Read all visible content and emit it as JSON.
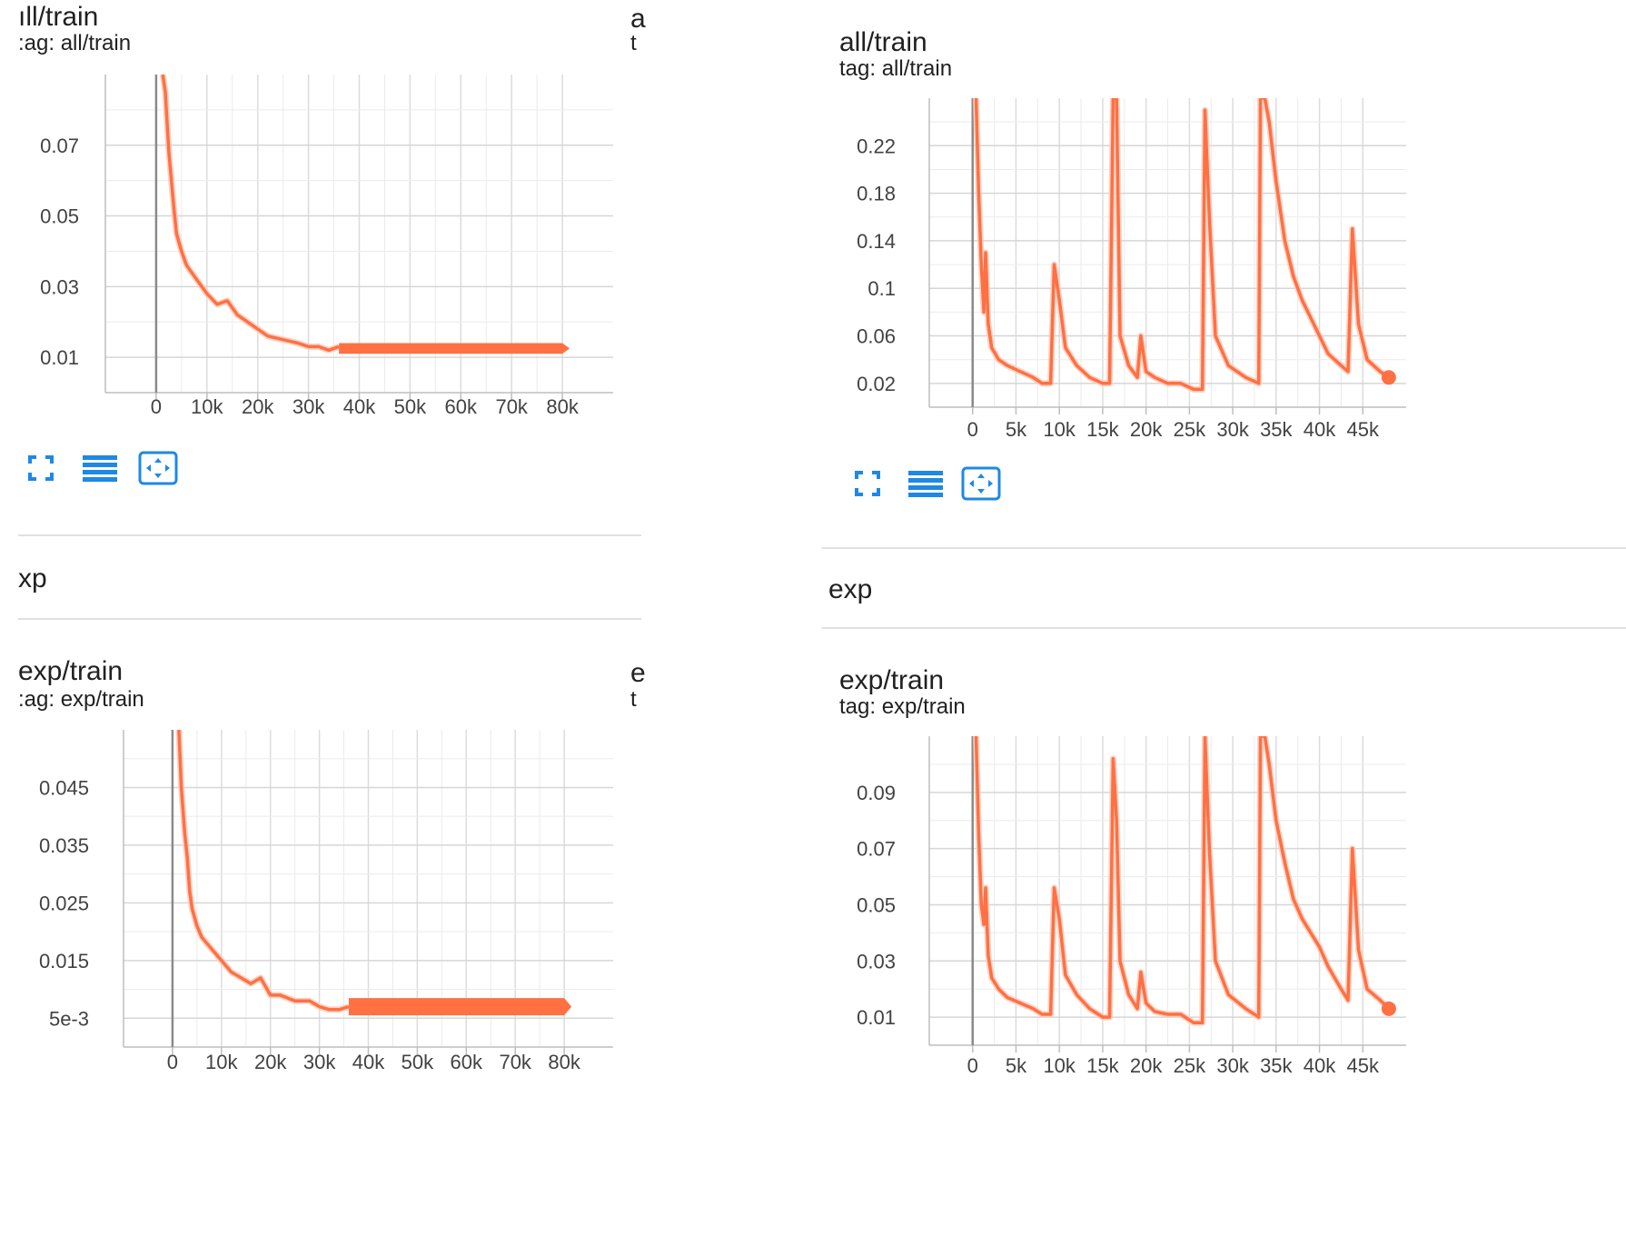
{
  "accent_color": "#ff7043",
  "accent_color_faint": "#f9c9b8",
  "tool_color": "#1e88e5",
  "sections": {
    "left_exp": "xp",
    "right_exp": "exp"
  },
  "toolbar_icons": [
    "fullscreen-icon",
    "list-icon",
    "fit-domain-icon"
  ],
  "cards": [
    {
      "id": "left-all",
      "title": "all/train",
      "tag": "tag: all/train",
      "title_shown": "ıll/train",
      "tag_shown": ":ag: all/train",
      "cut_title": "a",
      "cut_tag": "t"
    },
    {
      "id": "right-all",
      "title": "all/train",
      "tag": "tag: all/train"
    },
    {
      "id": "left-exp",
      "title": "exp/train",
      "tag": "tag: exp/train",
      "title_shown": "exp/train",
      "tag_shown": ":ag: exp/train",
      "cut_title": "e",
      "cut_tag": "t"
    },
    {
      "id": "right-exp",
      "title": "exp/train",
      "tag": "tag: exp/train"
    }
  ],
  "chart_data": [
    {
      "id": "left-all",
      "type": "line",
      "title": "all/train",
      "xlim": [
        -10000,
        90000
      ],
      "ylim": [
        0.0,
        0.09
      ],
      "xticks": [
        0,
        10000,
        20000,
        30000,
        40000,
        50000,
        60000,
        70000,
        80000
      ],
      "xtick_labels": [
        "0",
        "10k",
        "20k",
        "30k",
        "40k",
        "50k",
        "60k",
        "70k",
        "80k"
      ],
      "yticks": [
        0.01,
        0.03,
        0.05,
        0.07
      ],
      "ytick_labels": [
        "0.01",
        "0.03",
        "0.05",
        "0.07"
      ],
      "grid": true,
      "series": [
        {
          "x": [
            1300,
            1800,
            2500,
            3000,
            3500,
            4000,
            5000,
            6000,
            8000,
            10000,
            12000,
            14000,
            16000,
            18000,
            20000,
            22000,
            25000,
            28000,
            30000,
            32000,
            34000,
            36000
          ],
          "y": [
            0.09,
            0.085,
            0.068,
            0.06,
            0.052,
            0.045,
            0.04,
            0.036,
            0.032,
            0.028,
            0.025,
            0.026,
            0.022,
            0.02,
            0.018,
            0.016,
            0.015,
            0.014,
            0.013,
            0.013,
            0.012,
            0.013
          ]
        }
      ],
      "band": {
        "x": [
          36000,
          80000
        ],
        "y": [
          0.011,
          0.014
        ]
      }
    },
    {
      "id": "right-all",
      "type": "line",
      "title": "all/train",
      "xlim": [
        -5000,
        50000
      ],
      "ylim": [
        0.0,
        0.26
      ],
      "xticks": [
        0,
        5000,
        10000,
        15000,
        20000,
        25000,
        30000,
        35000,
        40000,
        45000
      ],
      "xtick_labels": [
        "0",
        "5k",
        "10k",
        "15k",
        "20k",
        "25k",
        "30k",
        "35k",
        "40k",
        "45k"
      ],
      "yticks": [
        0.02,
        0.06,
        0.1,
        0.14,
        0.18,
        0.22
      ],
      "ytick_labels": [
        "0.02",
        "0.06",
        "0.1",
        "0.14",
        "0.18",
        "0.22"
      ],
      "grid": true,
      "series": [
        {
          "x": [
            400,
            700,
            1000,
            1300,
            1500,
            1800,
            2200,
            3000,
            4000,
            5500,
            7000,
            8000,
            8700,
            9000,
            9400,
            10000,
            10700,
            12000,
            13500,
            15000,
            15800,
            16200,
            16600,
            17000,
            18000,
            19000,
            19400,
            20000,
            21000,
            22500,
            24000,
            25500,
            26500,
            26800,
            27300,
            28000,
            29500,
            31500,
            33000,
            33200,
            33700,
            34200,
            35000,
            36000,
            37000,
            38000,
            39000,
            40000,
            41000,
            42500,
            43300,
            43800,
            44500,
            45500,
            47000,
            48000
          ],
          "y": [
            0.26,
            0.18,
            0.12,
            0.08,
            0.13,
            0.07,
            0.05,
            0.04,
            0.035,
            0.03,
            0.025,
            0.02,
            0.02,
            0.02,
            0.12,
            0.09,
            0.05,
            0.035,
            0.025,
            0.02,
            0.02,
            0.26,
            0.26,
            0.06,
            0.035,
            0.025,
            0.06,
            0.03,
            0.025,
            0.02,
            0.02,
            0.015,
            0.015,
            0.25,
            0.16,
            0.06,
            0.035,
            0.025,
            0.02,
            0.26,
            0.26,
            0.24,
            0.19,
            0.14,
            0.11,
            0.09,
            0.075,
            0.06,
            0.045,
            0.035,
            0.03,
            0.15,
            0.07,
            0.04,
            0.03,
            0.025
          ]
        }
      ]
    },
    {
      "id": "left-exp",
      "type": "line",
      "title": "exp/train",
      "xlim": [
        -10000,
        90000
      ],
      "ylim": [
        0.0,
        0.055
      ],
      "xticks": [
        0,
        10000,
        20000,
        30000,
        40000,
        50000,
        60000,
        70000,
        80000
      ],
      "xtick_labels": [
        "0",
        "10k",
        "20k",
        "30k",
        "40k",
        "50k",
        "60k",
        "70k",
        "80k"
      ],
      "yticks": [
        0.005,
        0.015,
        0.025,
        0.035,
        0.045
      ],
      "ytick_labels": [
        "5e-3",
        "0.015",
        "0.025",
        "0.035",
        "0.045"
      ],
      "grid": true,
      "series": [
        {
          "x": [
            1300,
            1800,
            2500,
            3000,
            3500,
            4000,
            5000,
            6000,
            8000,
            10000,
            12000,
            14000,
            16000,
            18000,
            20000,
            22000,
            25000,
            28000,
            30000,
            32000,
            34000,
            36000
          ],
          "y": [
            0.055,
            0.045,
            0.037,
            0.033,
            0.027,
            0.024,
            0.021,
            0.019,
            0.017,
            0.015,
            0.013,
            0.012,
            0.011,
            0.012,
            0.009,
            0.009,
            0.008,
            0.008,
            0.007,
            0.0065,
            0.0065,
            0.007
          ]
        }
      ],
      "band": {
        "x": [
          36000,
          80000
        ],
        "y": [
          0.0055,
          0.0085
        ]
      }
    },
    {
      "id": "right-exp",
      "type": "line",
      "title": "exp/train",
      "xlim": [
        -5000,
        50000
      ],
      "ylim": [
        0.0,
        0.11
      ],
      "xticks": [
        0,
        5000,
        10000,
        15000,
        20000,
        25000,
        30000,
        35000,
        40000,
        45000
      ],
      "xtick_labels": [
        "0",
        "5k",
        "10k",
        "15k",
        "20k",
        "25k",
        "30k",
        "35k",
        "40k",
        "45k"
      ],
      "yticks": [
        0.01,
        0.03,
        0.05,
        0.07,
        0.09
      ],
      "ytick_labels": [
        "0.01",
        "0.03",
        "0.05",
        "0.07",
        "0.09"
      ],
      "grid": true,
      "series": [
        {
          "x": [
            400,
            700,
            1000,
            1300,
            1500,
            1800,
            2200,
            3000,
            4000,
            5500,
            7000,
            8000,
            8700,
            9000,
            9400,
            10000,
            10700,
            12000,
            13500,
            15000,
            15800,
            16200,
            16600,
            17000,
            18000,
            19000,
            19400,
            20000,
            21000,
            22500,
            24000,
            25500,
            26500,
            26800,
            27300,
            28000,
            29500,
            31500,
            33000,
            33200,
            33700,
            34200,
            35000,
            36000,
            37000,
            38000,
            39000,
            40000,
            41000,
            42500,
            43300,
            43800,
            44500,
            45500,
            47000,
            48000
          ],
          "y": [
            0.11,
            0.075,
            0.05,
            0.043,
            0.056,
            0.032,
            0.024,
            0.02,
            0.017,
            0.015,
            0.013,
            0.011,
            0.011,
            0.011,
            0.056,
            0.045,
            0.025,
            0.018,
            0.013,
            0.01,
            0.01,
            0.102,
            0.08,
            0.03,
            0.018,
            0.013,
            0.026,
            0.015,
            0.012,
            0.011,
            0.011,
            0.008,
            0.008,
            0.11,
            0.07,
            0.03,
            0.018,
            0.013,
            0.01,
            0.11,
            0.11,
            0.1,
            0.08,
            0.065,
            0.052,
            0.045,
            0.04,
            0.035,
            0.028,
            0.02,
            0.016,
            0.07,
            0.034,
            0.02,
            0.016,
            0.013
          ]
        }
      ]
    }
  ]
}
